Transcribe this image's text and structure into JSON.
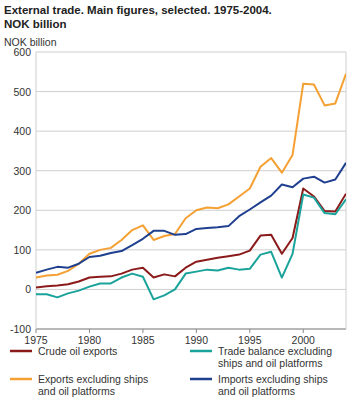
{
  "chart_data": {
    "type": "line",
    "title": "External trade. Main figures, selected. 1975-2004.",
    "subtitle": "NOK billion",
    "y_label": "NOK billion",
    "x": [
      1975,
      1976,
      1977,
      1978,
      1979,
      1980,
      1981,
      1982,
      1983,
      1984,
      1985,
      1986,
      1987,
      1988,
      1989,
      1990,
      1991,
      1992,
      1993,
      1994,
      1995,
      1996,
      1997,
      1998,
      1999,
      2000,
      2001,
      2002,
      2003,
      2004
    ],
    "xlim": [
      1975,
      2004
    ],
    "xticks": [
      1975,
      1980,
      1985,
      1990,
      1995,
      2000
    ],
    "ylim": [
      -100,
      600
    ],
    "yticks": [
      -100,
      0,
      100,
      200,
      300,
      400,
      500,
      600
    ],
    "grid": true,
    "legend": "bottom",
    "series": [
      {
        "name": "Crude oil exports",
        "color": "#8b1a1a",
        "values": [
          5,
          8,
          10,
          13,
          20,
          30,
          32,
          33,
          40,
          50,
          55,
          30,
          38,
          33,
          55,
          70,
          75,
          80,
          84,
          88,
          98,
          136,
          138,
          90,
          130,
          255,
          235,
          198,
          197,
          242
        ]
      },
      {
        "name": "Trade balance excluding ships and oil platforms",
        "color": "#1aa39a",
        "values": [
          -12,
          -12,
          -20,
          -10,
          -3,
          7,
          15,
          15,
          30,
          40,
          32,
          -25,
          -15,
          0,
          40,
          45,
          50,
          48,
          55,
          50,
          52,
          88,
          95,
          30,
          90,
          240,
          232,
          193,
          190,
          228
        ]
      },
      {
        "name": "Exports excluding ships and oil platforms",
        "color": "#f5a033",
        "values": [
          30,
          35,
          37,
          47,
          65,
          90,
          100,
          105,
          125,
          150,
          162,
          125,
          135,
          140,
          180,
          200,
          207,
          205,
          215,
          235,
          255,
          310,
          332,
          295,
          340,
          520,
          518,
          465,
          470,
          545
        ]
      },
      {
        "name": "Imports excluding ships and oil platforms",
        "color": "#1f3f8f",
        "values": [
          42,
          50,
          57,
          55,
          65,
          82,
          85,
          92,
          97,
          112,
          128,
          148,
          148,
          138,
          140,
          153,
          155,
          157,
          160,
          185,
          202,
          220,
          237,
          265,
          258,
          280,
          285,
          270,
          278,
          320
        ]
      }
    ]
  }
}
